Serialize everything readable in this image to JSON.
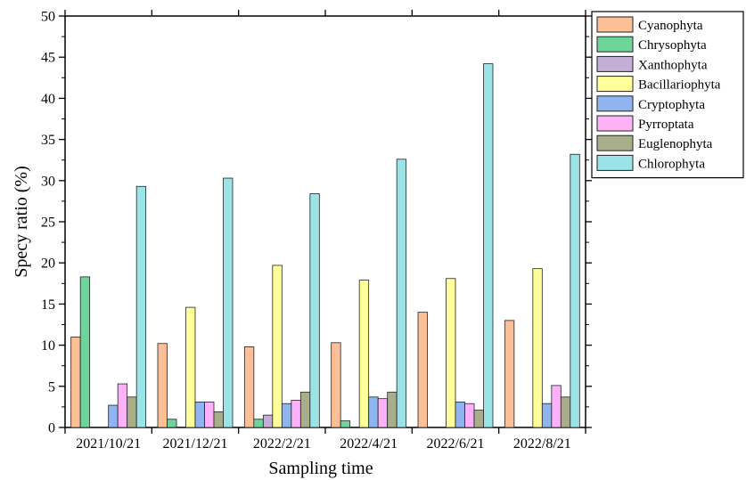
{
  "chart_data": {
    "type": "bar",
    "xlabel": "Sampling time",
    "ylabel": "Specy ratio (%)",
    "ylim": [
      0,
      50
    ],
    "yticks": [
      0,
      5,
      10,
      15,
      20,
      25,
      30,
      35,
      40,
      45,
      50
    ],
    "grid": false,
    "legend_position": "top-right, outside plot",
    "categories": [
      "2021/10/21",
      "2021/12/21",
      "2022/2/21",
      "2022/4/21",
      "2022/6/21",
      "2022/8/21"
    ],
    "series": [
      {
        "name": "Cyanophyta",
        "color": "#FDBF96",
        "values": [
          11.0,
          10.2,
          9.8,
          10.3,
          14.0,
          13.0
        ]
      },
      {
        "name": "Chrysophyta",
        "color": "#6DD59A",
        "values": [
          18.3,
          1.0,
          1.0,
          0.8,
          0,
          0
        ]
      },
      {
        "name": "Xanthophyta",
        "color": "#C3AED6",
        "values": [
          0,
          0,
          1.5,
          0,
          0,
          0
        ]
      },
      {
        "name": "Bacillariophyta",
        "color": "#FFFF9A",
        "values": [
          0,
          14.6,
          19.7,
          17.9,
          18.1,
          19.3
        ]
      },
      {
        "name": "Cryptophyta",
        "color": "#90B4F0",
        "values": [
          2.7,
          3.1,
          2.9,
          3.7,
          3.1,
          2.9
        ]
      },
      {
        "name": "Pyrroptata",
        "color": "#FDB1F8",
        "values": [
          5.3,
          3.1,
          3.3,
          3.5,
          2.9,
          5.1
        ]
      },
      {
        "name": "Euglenophyta",
        "color": "#A8AD8A",
        "values": [
          3.7,
          1.9,
          4.3,
          4.3,
          2.1,
          3.7
        ]
      },
      {
        "name": "Chlorophyta",
        "color": "#9CE3E8",
        "values": [
          29.3,
          30.3,
          28.4,
          32.6,
          44.2,
          33.2
        ]
      }
    ]
  }
}
